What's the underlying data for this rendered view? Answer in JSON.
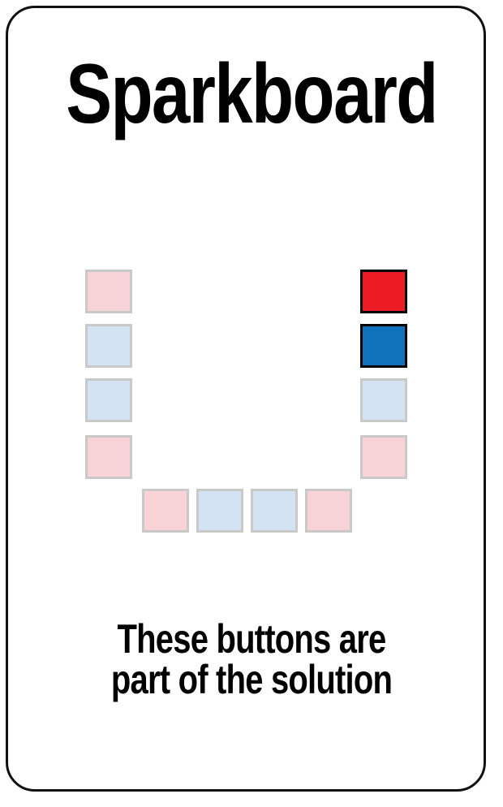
{
  "card": {
    "title": "Sparkboard",
    "caption_line1": "These buttons are",
    "caption_line2": "part of the solution"
  },
  "colors": {
    "pale_red": "#f8d3d6",
    "pale_blue": "#d3e3f1",
    "red": "#ec1c24",
    "blue": "#0f73bc",
    "faded_border": "#c9c9c9",
    "lit_border": "#000000"
  },
  "buttons": [
    {
      "id": "left-1",
      "color": "red",
      "highlighted": false
    },
    {
      "id": "left-2",
      "color": "blue",
      "highlighted": false
    },
    {
      "id": "left-3",
      "color": "blue",
      "highlighted": false
    },
    {
      "id": "left-4",
      "color": "red",
      "highlighted": false
    },
    {
      "id": "bottom-1",
      "color": "red",
      "highlighted": false
    },
    {
      "id": "bottom-2",
      "color": "blue",
      "highlighted": false
    },
    {
      "id": "bottom-3",
      "color": "blue",
      "highlighted": false
    },
    {
      "id": "bottom-4",
      "color": "red",
      "highlighted": false
    },
    {
      "id": "right-4",
      "color": "red",
      "highlighted": false
    },
    {
      "id": "right-3",
      "color": "blue",
      "highlighted": false
    },
    {
      "id": "right-2",
      "color": "blue",
      "highlighted": true
    },
    {
      "id": "right-1",
      "color": "red",
      "highlighted": true
    }
  ]
}
